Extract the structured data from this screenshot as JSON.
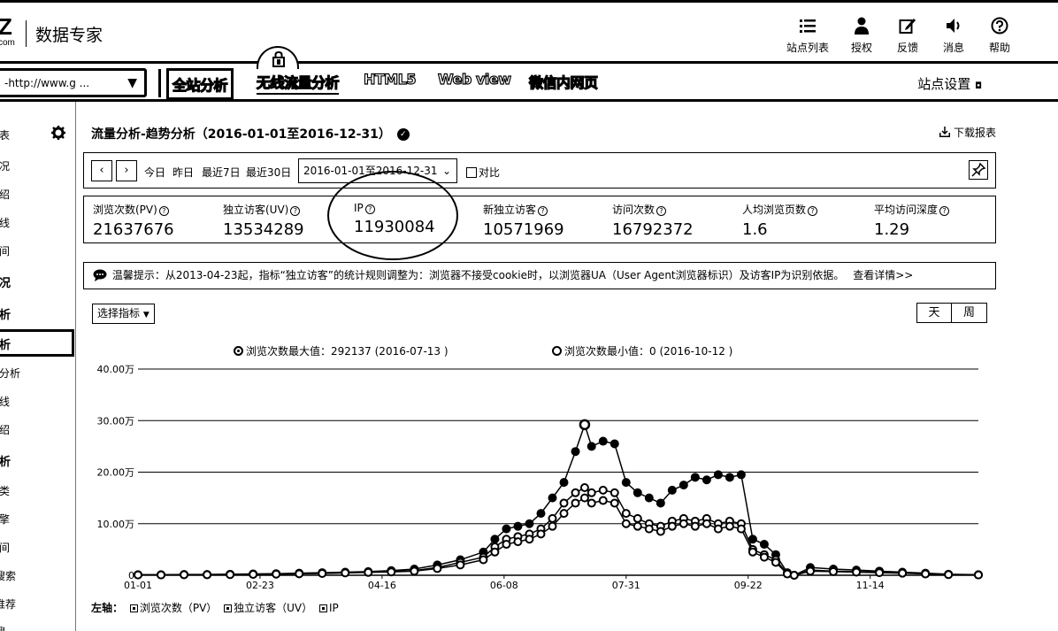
{
  "header": {
    "logo_mark": "Z",
    "logo_sub": "com",
    "brand": "数据专家",
    "nav": [
      {
        "icon": "list-icon",
        "label": "站点列表"
      },
      {
        "icon": "user-icon",
        "label": "授权"
      },
      {
        "icon": "edit-icon",
        "label": "反馈"
      },
      {
        "icon": "speaker-icon",
        "label": "消息"
      },
      {
        "icon": "help-icon",
        "label": "帮助"
      }
    ]
  },
  "navbar": {
    "site_select": "-http://www.g ...",
    "tabs": [
      "全站分析",
      "无线流量分析",
      "HTML5",
      "Web view",
      "微信内网页"
    ],
    "settings": "站点设置"
  },
  "sidebar": {
    "items": [
      "表",
      "况",
      "绍",
      "线",
      "间",
      "况",
      "析",
      "析",
      "分析",
      "线",
      "绍",
      "析",
      "类",
      "擎",
      "间",
      "搜索",
      "推荐",
      "搜"
    ]
  },
  "main": {
    "title": "流量分析-趋势分析（2016-01-01至2016-12-31）",
    "download": "下载报表",
    "quick_ranges": [
      "今日",
      "昨日",
      "最近7日",
      "最近30日"
    ],
    "date_range": "2016-01-01至2016-12-31",
    "compare": "对比",
    "metrics": [
      {
        "label": "浏览次数(PV)",
        "value": "21637676"
      },
      {
        "label": "独立访客(UV)",
        "value": "13534289"
      },
      {
        "label": "IP",
        "value": "11930084"
      },
      {
        "label": "新独立访客",
        "value": "10571969"
      },
      {
        "label": "访问次数",
        "value": "16792372"
      },
      {
        "label": "人均浏览页数",
        "value": "1.6"
      },
      {
        "label": "平均访问深度",
        "value": "1.29"
      }
    ],
    "tip": "温馨提示：从2013-04-23起，指标“独立访客”的统计规则调整为：浏览器不接受cookie时，以浏览器UA（User Agent浏览器标识）及访客IP为识别依据。",
    "tip_link": "查看详情>>",
    "select_metric": "选择指标",
    "day": "天",
    "week": "周",
    "max_label": "浏览次数最大值：292137 (2016-07-13 )",
    "min_label": "浏览次数最小值：0 (2016-10-12 )",
    "bottom_legend_prefix": "左轴：",
    "bottom_legend": [
      "浏览次数（PV）",
      "独立访客（UV）",
      "IP"
    ]
  },
  "chart_data": {
    "type": "line",
    "title": "",
    "ylabel": "",
    "ylim": [
      0,
      400000
    ],
    "y_ticks": [
      "0",
      "10.00万",
      "20.00万",
      "30.00万",
      "40.00万"
    ],
    "x_ticks": [
      "01-01",
      "02-23",
      "04-16",
      "06-08",
      "07-31",
      "09-22",
      "11-14"
    ],
    "x": [
      "01-01",
      "01-11",
      "01-21",
      "01-31",
      "02-10",
      "02-20",
      "03-01",
      "03-11",
      "03-21",
      "03-31",
      "04-10",
      "04-20",
      "04-30",
      "05-10",
      "05-20",
      "05-30",
      "06-04",
      "06-09",
      "06-14",
      "06-19",
      "06-24",
      "06-29",
      "07-04",
      "07-09",
      "07-13",
      "07-16",
      "07-21",
      "07-26",
      "07-31",
      "08-05",
      "08-10",
      "08-15",
      "08-20",
      "08-25",
      "08-30",
      "09-04",
      "09-09",
      "09-14",
      "09-19",
      "09-24",
      "09-29",
      "10-04",
      "10-09",
      "10-12",
      "10-19",
      "10-29",
      "11-08",
      "11-18",
      "11-28",
      "12-08",
      "12-18",
      "12-31"
    ],
    "series": [
      {
        "name": "浏览次数（PV）",
        "values": [
          1000,
          1000,
          1500,
          1500,
          2000,
          2500,
          3000,
          4000,
          5000,
          6000,
          7000,
          9000,
          12000,
          20000,
          30000,
          45000,
          70000,
          90000,
          95000,
          100000,
          120000,
          150000,
          180000,
          240000,
          292137,
          250000,
          260000,
          255000,
          180000,
          160000,
          150000,
          140000,
          165000,
          175000,
          190000,
          185000,
          195000,
          190000,
          195000,
          70000,
          60000,
          40000,
          5000,
          0,
          15000,
          12000,
          10000,
          8000,
          6000,
          4000,
          2000,
          1000
        ]
      },
      {
        "name": "独立访客（UV）",
        "values": [
          800,
          800,
          1200,
          1200,
          1500,
          2000,
          2500,
          3000,
          4000,
          5000,
          6000,
          7500,
          9000,
          15000,
          25000,
          35000,
          55000,
          70000,
          75000,
          80000,
          90000,
          110000,
          140000,
          160000,
          170000,
          160000,
          165000,
          160000,
          120000,
          110000,
          100000,
          95000,
          105000,
          110000,
          105000,
          110000,
          100000,
          105000,
          100000,
          50000,
          40000,
          30000,
          3000,
          0,
          10000,
          8000,
          7000,
          6000,
          5000,
          3000,
          1500,
          800
        ]
      },
      {
        "name": "IP",
        "values": [
          700,
          700,
          1000,
          1000,
          1300,
          1800,
          2200,
          2800,
          3500,
          4500,
          5500,
          6500,
          8000,
          13000,
          20000,
          30000,
          45000,
          60000,
          65000,
          70000,
          80000,
          95000,
          120000,
          140000,
          150000,
          140000,
          145000,
          140000,
          100000,
          95000,
          90000,
          85000,
          95000,
          100000,
          95000,
          100000,
          90000,
          95000,
          90000,
          45000,
          35000,
          25000,
          2500,
          0,
          8000,
          7000,
          6000,
          5000,
          4000,
          2500,
          1200,
          700
        ]
      }
    ]
  }
}
